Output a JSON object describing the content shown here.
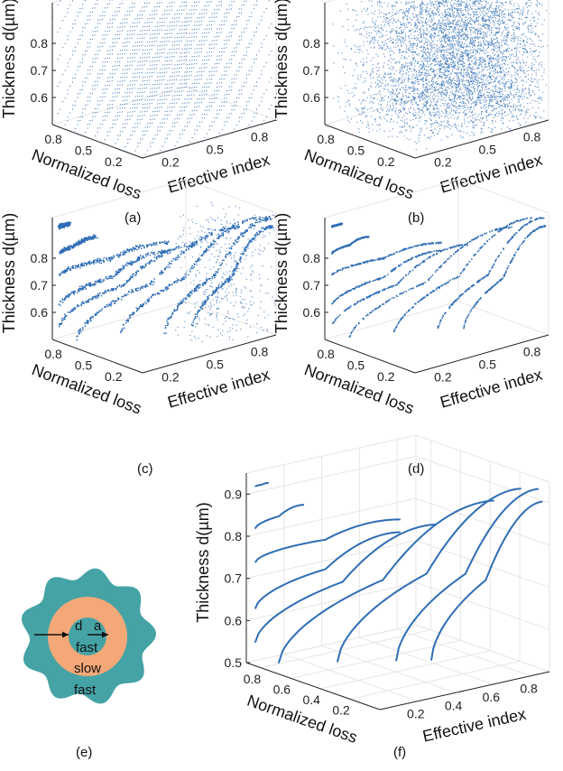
{
  "colors": {
    "points": "#2f6db5",
    "outer_cladding": "#45a3a5",
    "ring": "#f5a877",
    "core": "#45a3a5",
    "axis": "#222222",
    "grid": "#e6e6e6"
  },
  "schematic": {
    "panel_label": "(e)",
    "label_d": "d",
    "label_a": "a",
    "label_core": "fast",
    "label_ring": "slow",
    "label_cladding": "fast"
  },
  "chart_data": [
    {
      "panel_label": "(a)",
      "type": "scatter",
      "title": "",
      "zlabel": "Thickness d(µm)",
      "ylabel": "Normalized loss",
      "xlabel": "Effective index",
      "zticks": [
        "0.6",
        "0.7",
        "0.8"
      ],
      "yticks": [
        "0.8",
        "0.5",
        "0.2"
      ],
      "xticks": [
        "0.2",
        "0.5",
        "0.8"
      ],
      "distribution": "uniform grid",
      "z_range": [
        0.5,
        0.95
      ],
      "x_range": [
        0.0,
        0.9
      ],
      "y_range": [
        0.0,
        0.9
      ]
    },
    {
      "panel_label": "(b)",
      "type": "scatter",
      "title": "",
      "zlabel": "Thickness d(µm)",
      "ylabel": "Normalized loss",
      "xlabel": "Effective index",
      "zticks": [
        "0.6",
        "0.7",
        "0.8"
      ],
      "yticks": [
        "0.8",
        "0.5",
        "0.2"
      ],
      "xticks": [
        "0.2",
        "0.5",
        "0.8"
      ],
      "distribution": "dense random cloud",
      "z_range": [
        0.5,
        0.95
      ],
      "x_range": [
        0.0,
        0.9
      ],
      "y_range": [
        0.0,
        0.9
      ]
    },
    {
      "panel_label": "(c)",
      "type": "scatter",
      "title": "",
      "zlabel": "Thickness d(µm)",
      "ylabel": "Normalized loss",
      "xlabel": "Effective index",
      "zticks": [
        "0.6",
        "0.7",
        "0.8"
      ],
      "yticks": [
        "0.8",
        "0.5",
        "0.2"
      ],
      "xticks": [
        "0.2",
        "0.5",
        "0.8"
      ],
      "distribution": "noisy mode curves",
      "z_range": [
        0.5,
        0.95
      ],
      "x_range": [
        0.0,
        0.9
      ],
      "y_range": [
        0.0,
        0.9
      ]
    },
    {
      "panel_label": "(d)",
      "type": "scatter",
      "title": "",
      "zlabel": "Thickness d(µm)",
      "ylabel": "Normalized loss",
      "xlabel": "Effective index",
      "zticks": [
        "0.6",
        "0.7",
        "0.8"
      ],
      "yticks": [
        "0.8",
        "0.5",
        "0.2"
      ],
      "xticks": [
        "0.2",
        "0.5",
        "0.8"
      ],
      "distribution": "clean mode curves",
      "z_range": [
        0.5,
        0.95
      ],
      "x_range": [
        0.0,
        0.9
      ],
      "y_range": [
        0.0,
        0.9
      ]
    },
    {
      "panel_label": "(f)",
      "type": "line",
      "title": "",
      "zlabel": "Thickness d(µm)",
      "ylabel": "Normalized loss",
      "xlabel": "Effective index",
      "zticks": [
        "0.5",
        "0.6",
        "0.7",
        "0.8",
        "0.9"
      ],
      "yticks": [
        "0.8",
        "0.6",
        "0.4",
        "0.2"
      ],
      "xticks": [
        "0.2",
        "0.4",
        "0.6",
        "0.8"
      ],
      "grid": true,
      "z_range": [
        0.5,
        0.95
      ],
      "x_range": [
        0.0,
        0.9
      ],
      "y_range": [
        0.0,
        0.9
      ],
      "mode_curves": [
        {
          "z_start": 0.92,
          "z_end": 0.93,
          "x_start": 0.02,
          "x_end": 0.06
        },
        {
          "z_start": 0.82,
          "z_end": 0.88,
          "x_start": 0.02,
          "x_end": 0.17
        },
        {
          "z_start": 0.74,
          "z_end": 0.85,
          "x_start": 0.02,
          "x_end": 0.47
        },
        {
          "z_start": 0.63,
          "z_end": 0.82,
          "x_start": 0.02,
          "x_end": 0.47
        },
        {
          "z_start": 0.55,
          "z_end": 0.84,
          "x_start": 0.02,
          "x_end": 0.58
        },
        {
          "z_start": 0.5,
          "z_end": 0.9,
          "x_start": 0.1,
          "x_end": 0.76
        },
        {
          "z_start": 0.5,
          "z_end": 0.93,
          "x_start": 0.3,
          "x_end": 0.84
        },
        {
          "z_start": 0.5,
          "z_end": 0.93,
          "x_start": 0.5,
          "x_end": 0.89
        },
        {
          "z_start": 0.5,
          "z_end": 0.9,
          "x_start": 0.62,
          "x_end": 0.9
        }
      ]
    }
  ]
}
